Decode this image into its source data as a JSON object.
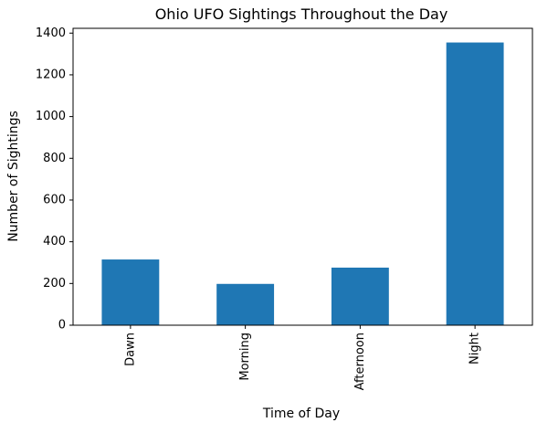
{
  "chart_data": {
    "type": "bar",
    "title": "Ohio UFO Sightings Throughout the Day",
    "xlabel": "Time of Day",
    "ylabel": "Number of Sightings",
    "categories": [
      "Dawn",
      "Morning",
      "Afternoon",
      "Night"
    ],
    "values": [
      315,
      198,
      276,
      1355
    ],
    "ylim": [
      0,
      1423
    ],
    "yticks": [
      0,
      200,
      400,
      600,
      800,
      1000,
      1200,
      1400
    ],
    "bar_color": "#1f77b4",
    "grid": false,
    "legend": false
  }
}
